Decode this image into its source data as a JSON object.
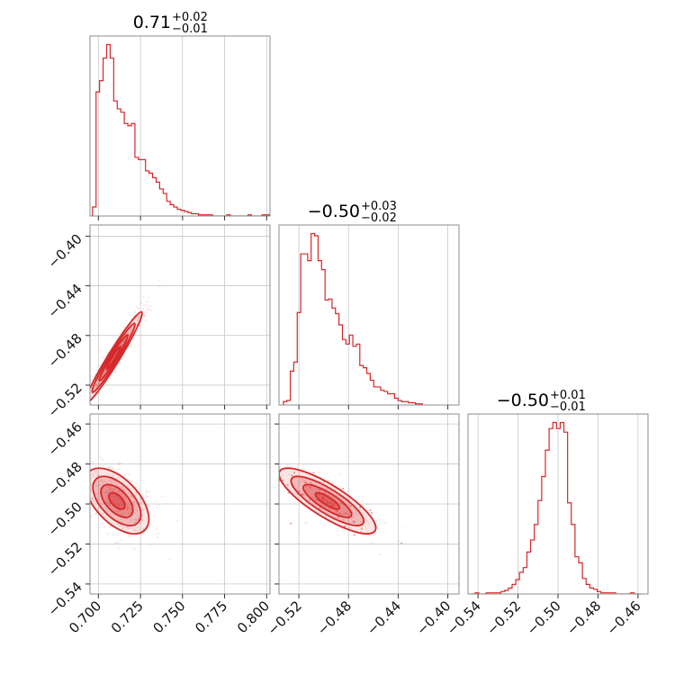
{
  "chart_data": {
    "type": "corner",
    "color": "#d62728",
    "parameters": [
      {
        "range": [
          0.695,
          0.802
        ],
        "ticks": [
          0.7,
          0.725,
          0.75,
          0.775,
          0.8
        ],
        "tick_labels": [
          "0.700",
          "0.725",
          "0.750",
          "0.775",
          "0.800"
        ],
        "title": {
          "main": "0.71",
          "plus": "+0.02",
          "minus": "−0.01"
        }
      },
      {
        "range": [
          -0.536,
          -0.391
        ],
        "ticks": [
          -0.52,
          -0.48,
          -0.44,
          -0.4
        ],
        "tick_labels": [
          "−0.52",
          "−0.48",
          "−0.44",
          "−0.40"
        ],
        "title": {
          "main": "−0.50",
          "plus": "+0.03",
          "minus": "−0.02"
        }
      },
      {
        "range": [
          -0.545,
          -0.455
        ],
        "ticks": [
          -0.54,
          -0.52,
          -0.5,
          -0.48,
          -0.46
        ],
        "tick_labels": [
          "−0.54",
          "−0.52",
          "−0.50",
          "−0.48",
          "−0.46"
        ],
        "title": {
          "main": "−0.50",
          "plus": "+0.01",
          "minus": "−0.01"
        }
      }
    ],
    "histograms": [
      {
        "param": 0,
        "bin_start": 0.6965,
        "bin_width": 0.0021,
        "counts": [
          8,
          110,
          120,
          140,
          152,
          140,
          102,
          95,
          92,
          82,
          80,
          82,
          52,
          50,
          50,
          40,
          38,
          34,
          30,
          24,
          20,
          13,
          10,
          8,
          6,
          5,
          4,
          3,
          2,
          2,
          1,
          1,
          1,
          1,
          0,
          0,
          0,
          0,
          1,
          0,
          0,
          0,
          0,
          0,
          1,
          0,
          0,
          0,
          1,
          1
        ]
      },
      {
        "param": 1,
        "bin_start": -0.5325,
        "bin_width": 0.0028,
        "counts": [
          3,
          4,
          30,
          38,
          82,
          134,
          134,
          128,
          152,
          150,
          128,
          120,
          93,
          94,
          86,
          81,
          71,
          58,
          54,
          62,
          52,
          54,
          35,
          33,
          28,
          22,
          16,
          16,
          13,
          12,
          10,
          10,
          6,
          4,
          3,
          3,
          2,
          2,
          1,
          1
        ]
      },
      {
        "param": 2,
        "bin_start": -0.5433,
        "bin_width": 0.00185,
        "counts": [
          0,
          1,
          0,
          0,
          1,
          1,
          1,
          1,
          2,
          3,
          5,
          8,
          12,
          18,
          22,
          35,
          45,
          58,
          78,
          98,
          120,
          138,
          143,
          138,
          143,
          135,
          76,
          58,
          31,
          26,
          13,
          8,
          5,
          4,
          2,
          1,
          1,
          1,
          1,
          0,
          0,
          0,
          0,
          1,
          0,
          0
        ]
      }
    ],
    "pairs": [
      {
        "x_param": 0,
        "y_param": 1,
        "mean": [
          0.709,
          -0.498
        ],
        "sd": [
          0.0085,
          0.0185
        ],
        "rho": 0.97,
        "scatter_n": 420,
        "seed": 11
      },
      {
        "x_param": 0,
        "y_param": 2,
        "mean": [
          0.711,
          -0.4985
        ],
        "sd": [
          0.0095,
          0.0082
        ],
        "rho": -0.55,
        "scatter_n": 380,
        "seed": 23
      },
      {
        "x_param": 1,
        "y_param": 2,
        "mean": [
          -0.497,
          -0.4985
        ],
        "sd": [
          0.0195,
          0.0082
        ],
        "rho": -0.82,
        "scatter_n": 380,
        "seed": 37
      }
    ],
    "contour_levels_sigma": [
      0.5,
      1.0,
      1.5,
      2.0
    ],
    "grid": true
  }
}
